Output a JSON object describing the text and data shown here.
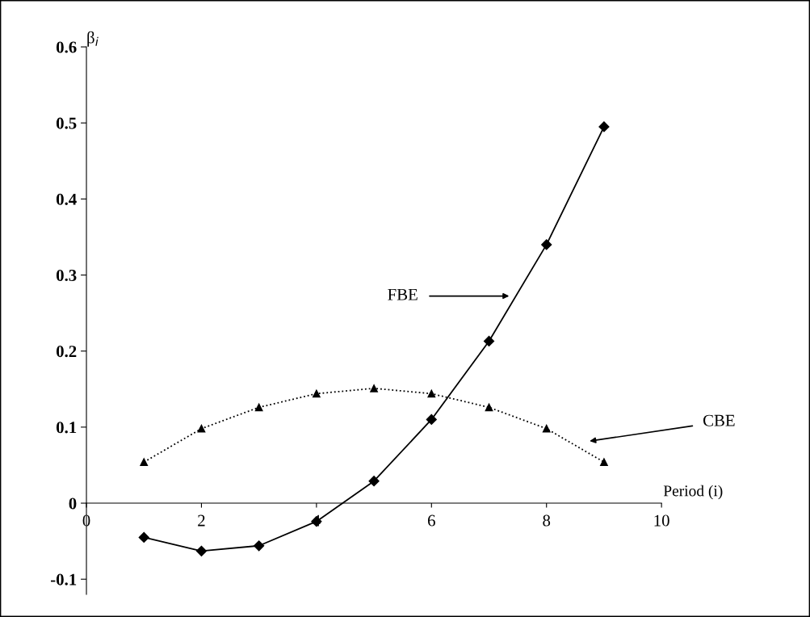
{
  "chart_data": {
    "type": "line",
    "xlabel": "Period (i)",
    "ylabel": "β$_{i}$",
    "x": [
      1,
      2,
      3,
      4,
      5,
      6,
      7,
      8,
      9
    ],
    "series": [
      {
        "color": "#000000",
        "marker": "diamond",
        "line_style": "solid",
        "values": [
          -0.045,
          -0.063,
          -0.056,
          -0.024,
          0.029,
          0.11,
          0.213,
          0.34,
          0.495
        ]
      },
      {
        "color": "#000000",
        "marker": "triangle",
        "line_style": "dotted",
        "values": [
          0.054,
          0.098,
          0.126,
          0.144,
          0.151,
          0.144,
          0.126,
          0.098,
          0.054
        ]
      }
    ],
    "xlim": [
      0,
      10
    ],
    "ylim": [
      -0.12,
      0.6
    ],
    "xticks": [
      0,
      2,
      4,
      6,
      8,
      10
    ],
    "yticks": [
      -0.1,
      0,
      0.1,
      0.2,
      0.3,
      0.4,
      0.5,
      0.6
    ],
    "annotations": [
      "FBE",
      "CBE"
    ],
    "grid": false,
    "legend": false
  }
}
